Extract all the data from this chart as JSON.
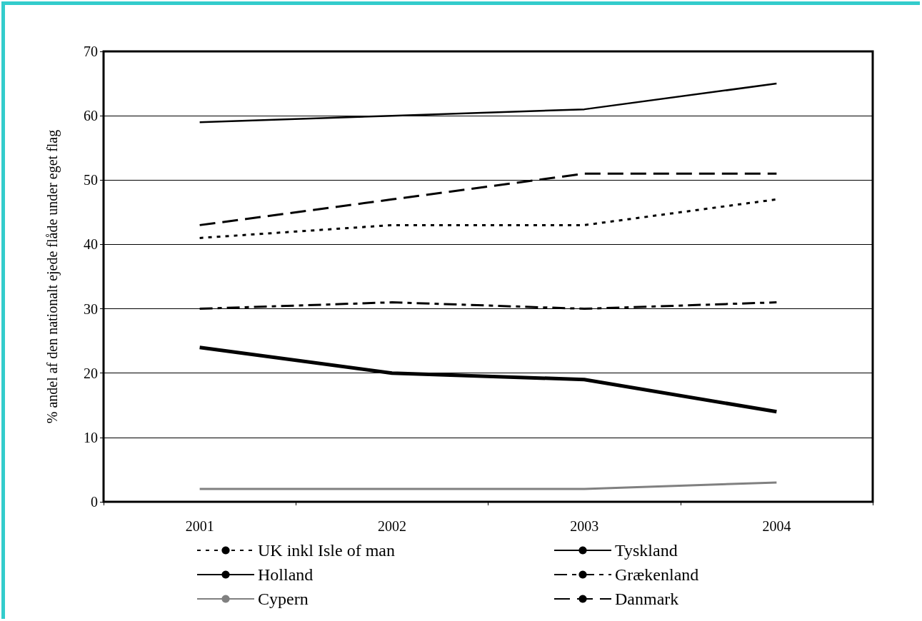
{
  "chart_data": {
    "type": "line",
    "ylabel": "% andel af den nationalt ejede flåde under eget flag",
    "categories": [
      "2001",
      "2002",
      "2003",
      "2004"
    ],
    "ylim": [
      0,
      70
    ],
    "yticks": [
      0,
      10,
      20,
      30,
      40,
      50,
      60,
      70
    ],
    "grid": "y",
    "legend": "bottom",
    "marker": "none",
    "series": [
      {
        "name": "UK inkl Isle of man",
        "color": "#000000",
        "line_style": "dotted",
        "values": [
          41,
          43,
          43,
          47
        ]
      },
      {
        "name": "Tyskland",
        "color": "#000000",
        "line_style": "solid",
        "values": [
          24,
          20,
          19,
          14
        ]
      },
      {
        "name": "Holland",
        "color": "#000000",
        "line_style": "solid",
        "values": [
          59,
          60,
          61,
          65
        ]
      },
      {
        "name": "Grækenland",
        "color": "#000000",
        "line_style": "dashdot",
        "values": [
          30,
          31,
          30,
          31
        ]
      },
      {
        "name": "Cypern",
        "color": "#808080",
        "line_style": "solid",
        "values": [
          2,
          2,
          2,
          3
        ]
      },
      {
        "name": "Danmark",
        "color": "#000000",
        "line_style": "dashed",
        "values": [
          43,
          47,
          51,
          51
        ]
      }
    ]
  }
}
